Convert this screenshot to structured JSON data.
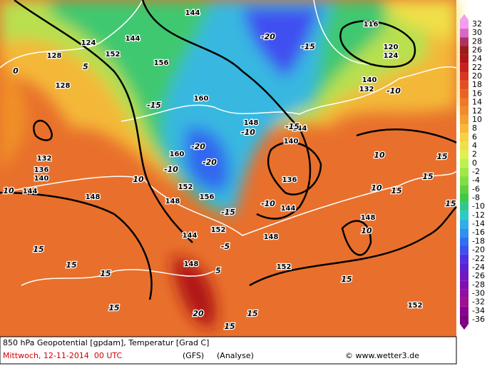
{
  "footer": {
    "line1": "850 hPa Geopotential [gpdam], Temperatur [Grad C]",
    "date": "Mittwoch, 12-11-2014  00 UTC",
    "model": "(GFS)",
    "run": "(Analyse)",
    "source": "© www.wetter3.de"
  },
  "colorbar": {
    "values": [
      32,
      30,
      28,
      26,
      24,
      22,
      20,
      18,
      16,
      14,
      12,
      10,
      8,
      6,
      4,
      2,
      0,
      -2,
      -4,
      -6,
      -8,
      -10,
      -12,
      -14,
      -16,
      -18,
      -20,
      -22,
      -24,
      -26,
      -28,
      -30,
      -32,
      -34,
      -36
    ],
    "colors": [
      "#f49cf0",
      "#d868c8",
      "#b03060",
      "#9c1c1c",
      "#b01414",
      "#c82020",
      "#d83820",
      "#e05020",
      "#e86424",
      "#f07828",
      "#f08c28",
      "#f4a030",
      "#f8b838",
      "#f8d040",
      "#f0e048",
      "#e0f050",
      "#c0f050",
      "#a0e848",
      "#80e040",
      "#60d040",
      "#40c848",
      "#30c890",
      "#30c8c8",
      "#30b0e0",
      "#3090f0",
      "#3070f0",
      "#4050f0",
      "#5030e0",
      "#6020d0",
      "#7018c0",
      "#8010b0",
      "#9010a0",
      "#a01090",
      "#8a0090",
      "#7a0080"
    ]
  },
  "map_labels": [
    "124",
    "128",
    "128",
    "132",
    "136",
    "140",
    "144",
    "144",
    "144",
    "152",
    "156",
    "160",
    "160",
    "152",
    "156",
    "152",
    "148",
    "148",
    "152",
    "148",
    "152",
    "148",
    "148",
    "144",
    "144",
    "140",
    "136",
    "148",
    "132",
    "124",
    "116",
    "120",
    "140",
    "144",
    "-20",
    "-20",
    "-20",
    "-15",
    "-15",
    "-15",
    "-10",
    "-10",
    "-10",
    "-10",
    "-15",
    "0",
    "5",
    "10",
    "10",
    "10",
    "10",
    "15",
    "15",
    "15",
    "15",
    "15",
    "15",
    "15",
    "15",
    "15",
    "15",
    "20",
    "10",
    "5",
    "-5",
    "15"
  ]
}
